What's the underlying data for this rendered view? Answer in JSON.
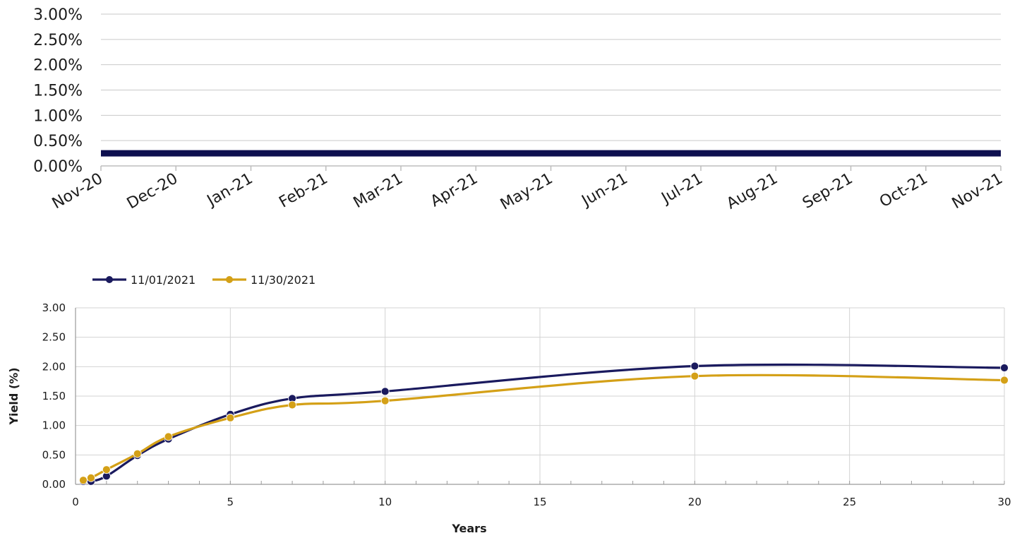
{
  "chart_data": [
    {
      "type": "line",
      "title": "",
      "xlabel": "",
      "ylabel": "",
      "categories": [
        "Nov-20",
        "Dec-20",
        "Jan-21",
        "Feb-21",
        "Mar-21",
        "Apr-21",
        "May-21",
        "Jun-21",
        "Jul-21",
        "Aug-21",
        "Sep-21",
        "Oct-21",
        "Nov-21"
      ],
      "y_ticks": [
        "0.00%",
        "0.50%",
        "1.00%",
        "1.50%",
        "2.00%",
        "2.50%",
        "3.00%"
      ],
      "ylim": [
        0,
        3
      ],
      "grid": true,
      "series": [
        {
          "values": [
            0.25,
            0.25,
            0.25,
            0.25,
            0.25,
            0.25,
            0.25,
            0.25,
            0.25,
            0.25,
            0.25,
            0.25,
            0.25
          ],
          "color": "#0d0f4f"
        }
      ]
    },
    {
      "type": "line",
      "title": "",
      "xlabel": "Years",
      "ylabel": "Yield (%)",
      "xlim": [
        0,
        30
      ],
      "ylim": [
        0,
        3
      ],
      "x_ticks": [
        "0",
        "5",
        "10",
        "15",
        "20",
        "25",
        "30"
      ],
      "y_ticks": [
        "0.00",
        "0.50",
        "1.00",
        "1.50",
        "2.00",
        "2.50",
        "3.00"
      ],
      "legend_position": "top-left",
      "grid": true,
      "series": [
        {
          "name": "11/01/2021",
          "color": "#1a1a5e",
          "x": [
            0.25,
            0.5,
            1,
            2,
            3,
            5,
            7,
            10,
            20,
            30
          ],
          "y": [
            0.05,
            0.05,
            0.14,
            0.49,
            0.77,
            1.19,
            1.46,
            1.58,
            2.01,
            1.98
          ]
        },
        {
          "name": "11/30/2021",
          "color": "#d4a017",
          "x": [
            0.25,
            0.5,
            1,
            2,
            3,
            5,
            7,
            10,
            20,
            30
          ],
          "y": [
            0.07,
            0.11,
            0.25,
            0.52,
            0.81,
            1.13,
            1.35,
            1.42,
            1.84,
            1.77
          ]
        }
      ]
    }
  ]
}
